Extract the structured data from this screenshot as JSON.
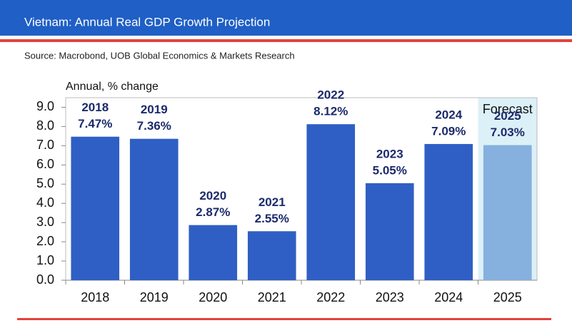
{
  "chart_data": {
    "type": "bar",
    "title": "Vietnam: Annual Real GDP Growth Projection",
    "subtitle": "Source: Macrobond, UOB Global Economics & Markets Research",
    "y_label": "Annual, % change",
    "categories": [
      "2018",
      "2019",
      "2020",
      "2021",
      "2022",
      "2023",
      "2024",
      "2025"
    ],
    "values": [
      7.47,
      7.36,
      2.87,
      2.55,
      8.12,
      5.05,
      7.09,
      7.03
    ],
    "value_labels": [
      "7.47%",
      "7.36%",
      "2.87%",
      "2.55%",
      "8.12%",
      "5.05%",
      "7.09%",
      "7.03%"
    ],
    "colors": [
      "#2f5fc4",
      "#2f5fc4",
      "#2f5fc4",
      "#2f5fc4",
      "#2f5fc4",
      "#2f5fc4",
      "#2f5fc4",
      "#86b0dd"
    ],
    "annotations": [
      {
        "text": "Forecast",
        "category": "2025",
        "color": "#dcf0f7"
      }
    ],
    "ylim": [
      0,
      9.5
    ],
    "yticks": [
      {
        "value": 0,
        "label": "0.0"
      },
      {
        "value": 1,
        "label": "1.0"
      },
      {
        "value": 2,
        "label": "2.0"
      },
      {
        "value": 3,
        "label": "3.0"
      },
      {
        "value": 4,
        "label": "4.0"
      },
      {
        "value": 5,
        "label": "5.0"
      },
      {
        "value": 6,
        "label": "6.0"
      },
      {
        "value": 7,
        "label": "7.0"
      },
      {
        "value": 8,
        "label": "8.0"
      },
      {
        "value": 9,
        "label": "9.0"
      }
    ],
    "grid": false
  }
}
